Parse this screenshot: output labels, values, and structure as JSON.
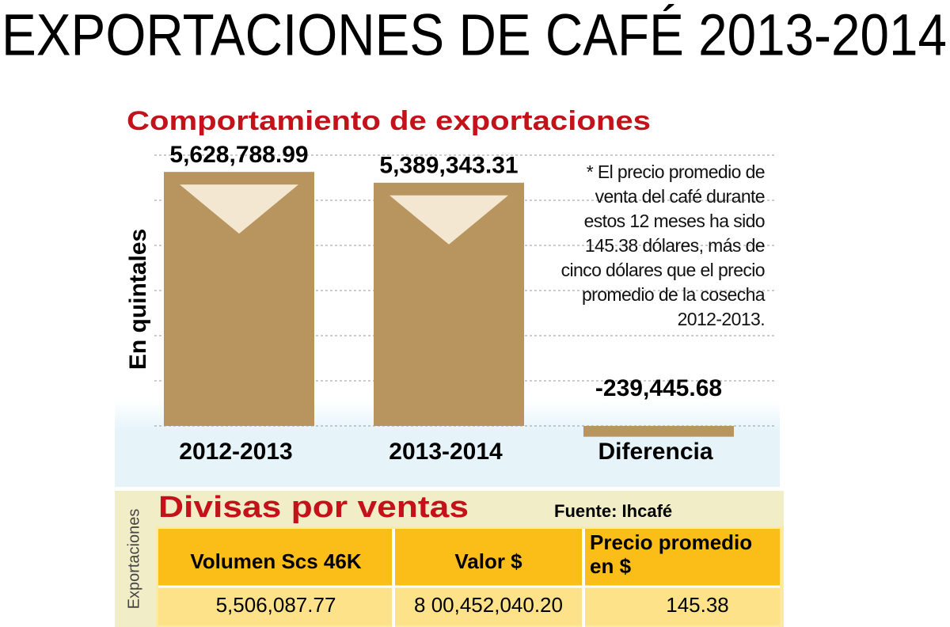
{
  "header": {
    "title": "EXPORTACIONES DE CAFÉ 2013-2014"
  },
  "chart_data": {
    "type": "bar",
    "title": "Comportamiento de exportaciones",
    "y_label": "En quintales",
    "categories": [
      "2012-2013",
      "2013-2014",
      "Diferencia"
    ],
    "values": [
      5628788.99,
      5389343.31,
      -239445.68
    ],
    "value_labels": [
      "5,628,788.99",
      "5,389,343.31",
      "-239,445.68"
    ],
    "color": "#b8955e",
    "ylim": [
      0,
      6000000
    ],
    "yticks": [
      0,
      1000000,
      2000000,
      3000000,
      4000000,
      5000000,
      6000000
    ],
    "grid": true,
    "note": "* El precio promedio de venta del café durante estos 12 meses ha sido 145.38 dólares, más de cinco dólares que el precio promedio de la cosecha 2012-2013."
  },
  "table": {
    "title": "Divisas por ventas",
    "source": "Fuente: Ihcafé",
    "side_label": "Exportaciones",
    "headers": [
      "Volumen Scs 46K",
      "Valor $",
      "Precio promedio en $"
    ],
    "rows": [
      [
        "5,506,087.77",
        "8 00,452,040.20",
        "145.38"
      ]
    ]
  }
}
